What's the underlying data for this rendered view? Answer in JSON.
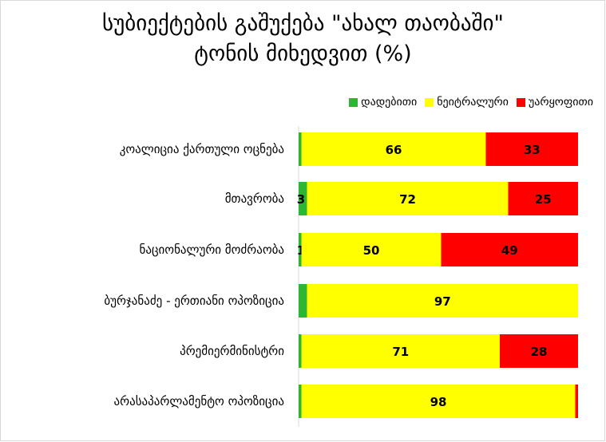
{
  "title_line1": "სუბიექტების გაშუქება \"ახალ თაობაში\"",
  "title_line2": "ტონის მიხედვით (%)",
  "colors": {
    "positive": "#2fb534",
    "neutral": "#ffff00",
    "negative": "#ff0000"
  },
  "chart_data": {
    "type": "bar",
    "orientation": "horizontal",
    "stacked": true,
    "categories": [
      "კოალიცია ქართული ოცნება",
      "მთავრობა",
      "ნაციონალური მოძრაობა",
      "ბურჯანაძე - ერთიანი ოპოზიცია",
      "პრემიერმინისტრი",
      "არასაპარლამენტო ოპოზიცია"
    ],
    "series": [
      {
        "name": "დადებითი",
        "values": [
          1,
          3,
          1,
          3,
          1,
          1
        ]
      },
      {
        "name": "ნეიტრალური",
        "values": [
          66,
          72,
          50,
          97,
          71,
          98
        ]
      },
      {
        "name": "უარყოფითი",
        "values": [
          33,
          25,
          49,
          0,
          28,
          1
        ]
      }
    ],
    "data_labels": [
      [
        "",
        "66",
        "33"
      ],
      [
        "3",
        "72",
        "25"
      ],
      [
        "1",
        "50",
        "49"
      ],
      [
        "",
        "97",
        ""
      ],
      [
        "",
        "71",
        "28"
      ],
      [
        "",
        "98",
        ""
      ]
    ],
    "legend": "top-right",
    "grid": false,
    "xlim": [
      0,
      100
    ]
  }
}
